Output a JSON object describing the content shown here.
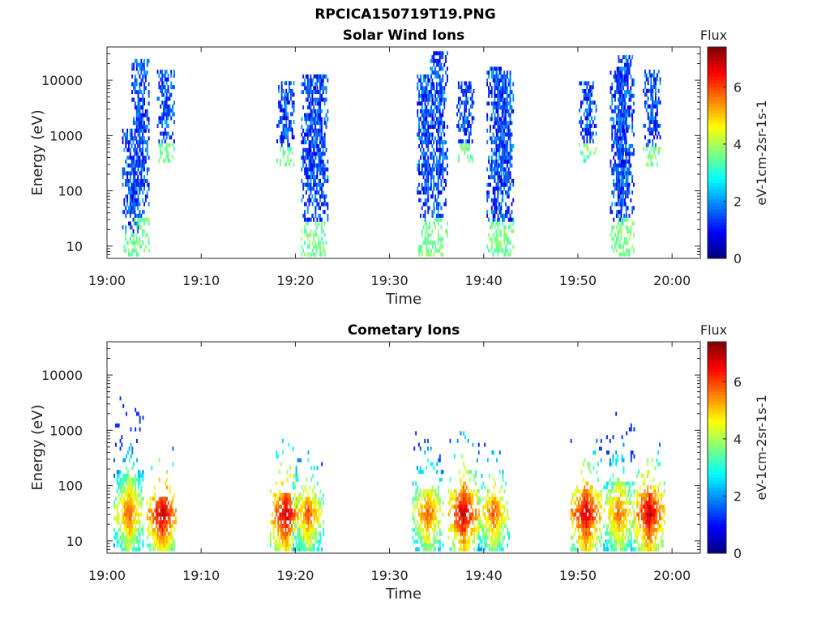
{
  "page_title": "RPCICA150719T19.PNG",
  "chart_data": [
    {
      "type": "heatmap",
      "title": "Solar Wind Ions",
      "xlabel": "Time",
      "ylabel": "Energy (eV)",
      "y_scale": "log",
      "ylim": [
        6,
        40000
      ],
      "x_range": [
        "19:00",
        "20:03"
      ],
      "x_ticks": [
        "19:00",
        "19:10",
        "19:20",
        "19:30",
        "19:40",
        "19:50",
        "20:00"
      ],
      "y_ticks": [
        "10",
        "100",
        "1000",
        "10000"
      ],
      "colorbar": {
        "title": "Flux",
        "label": "eV-1cm-2sr-1s-1",
        "range": [
          0,
          7.4
        ],
        "ticks": [
          "0",
          "2",
          "4",
          "6"
        ],
        "colormap": "jet"
      },
      "bursts": [
        {
          "time_min": 2.5,
          "emin": 6,
          "emax": 1300,
          "core": 3
        },
        {
          "time_min": 3.5,
          "emin": 6,
          "emax": 25000,
          "core": 3
        },
        {
          "time_min": 6.2,
          "emin": 350,
          "emax": 15000,
          "core": 3
        },
        {
          "time_min": 18.9,
          "emin": 300,
          "emax": 9000,
          "core": 3
        },
        {
          "time_min": 21.5,
          "emin": 6,
          "emax": 12000,
          "core": 3
        },
        {
          "time_min": 22.5,
          "emin": 6,
          "emax": 12000,
          "core": 3
        },
        {
          "time_min": 33.8,
          "emin": 6,
          "emax": 12000,
          "core": 3
        },
        {
          "time_min": 35.2,
          "emin": 6,
          "emax": 35000,
          "core": 3
        },
        {
          "time_min": 38.0,
          "emin": 350,
          "emax": 9000,
          "core": 3
        },
        {
          "time_min": 41.2,
          "emin": 6,
          "emax": 18000,
          "core": 3
        },
        {
          "time_min": 42.2,
          "emin": 6,
          "emax": 15000,
          "core": 3
        },
        {
          "time_min": 51.0,
          "emin": 350,
          "emax": 9000,
          "core": 3
        },
        {
          "time_min": 54.3,
          "emin": 6,
          "emax": 14000,
          "core": 3
        },
        {
          "time_min": 55.0,
          "emin": 6,
          "emax": 30000,
          "core": 3
        },
        {
          "time_min": 57.8,
          "emin": 300,
          "emax": 15000,
          "core": 3
        }
      ]
    },
    {
      "type": "heatmap",
      "title": "Cometary Ions",
      "xlabel": "Time",
      "ylabel": "Energy (eV)",
      "y_scale": "log",
      "ylim": [
        6,
        40000
      ],
      "x_range": [
        "19:00",
        "20:03"
      ],
      "x_ticks": [
        "19:00",
        "19:10",
        "19:20",
        "19:30",
        "19:40",
        "19:50",
        "20:00"
      ],
      "y_ticks": [
        "10",
        "100",
        "1000",
        "10000"
      ],
      "colorbar": {
        "title": "Flux",
        "label": "eV-1cm-2sr-1s-1",
        "range": [
          0,
          7.4
        ],
        "ticks": [
          "0",
          "2",
          "4",
          "6"
        ],
        "colormap": "jet"
      },
      "bursts": [
        {
          "time_min": 2.3,
          "emin": 6,
          "emax": 5200,
          "core": 6
        },
        {
          "time_min": 5.8,
          "emin": 6,
          "emax": 600,
          "core": 7
        },
        {
          "time_min": 18.9,
          "emin": 6,
          "emax": 1000,
          "core": 7
        },
        {
          "time_min": 21.3,
          "emin": 6,
          "emax": 600,
          "core": 6
        },
        {
          "time_min": 34.0,
          "emin": 6,
          "emax": 1300,
          "core": 6
        },
        {
          "time_min": 37.8,
          "emin": 6,
          "emax": 1200,
          "core": 7
        },
        {
          "time_min": 41.0,
          "emin": 6,
          "emax": 700,
          "core": 6
        },
        {
          "time_min": 50.8,
          "emin": 6,
          "emax": 1300,
          "core": 7
        },
        {
          "time_min": 54.3,
          "emin": 6,
          "emax": 2300,
          "core": 6
        },
        {
          "time_min": 57.5,
          "emin": 6,
          "emax": 1000,
          "core": 7
        }
      ]
    }
  ]
}
